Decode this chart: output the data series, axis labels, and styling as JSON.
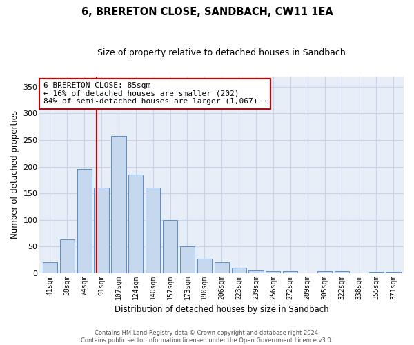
{
  "title": "6, BRERETON CLOSE, SANDBACH, CW11 1EA",
  "subtitle": "Size of property relative to detached houses in Sandbach",
  "xlabel": "Distribution of detached houses by size in Sandbach",
  "ylabel": "Number of detached properties",
  "bar_color": "#c5d8ed",
  "bar_edge_color": "#5b8fc9",
  "categories": [
    "41sqm",
    "58sqm",
    "74sqm",
    "91sqm",
    "107sqm",
    "124sqm",
    "140sqm",
    "157sqm",
    "173sqm",
    "190sqm",
    "206sqm",
    "223sqm",
    "239sqm",
    "256sqm",
    "272sqm",
    "289sqm",
    "305sqm",
    "322sqm",
    "338sqm",
    "355sqm",
    "371sqm"
  ],
  "values": [
    20,
    63,
    195,
    160,
    258,
    185,
    160,
    100,
    50,
    27,
    20,
    10,
    5,
    4,
    4,
    0,
    4,
    4,
    0,
    2,
    2
  ],
  "vline_pos": 2.7,
  "vline_color": "#cc0000",
  "annotation_text": "6 BRERETON CLOSE: 85sqm\n← 16% of detached houses are smaller (202)\n84% of semi-detached houses are larger (1,067) →",
  "annotation_box_color": "#ffffff",
  "annotation_box_edge_color": "#cc0000",
  "ylim": [
    0,
    370
  ],
  "yticks": [
    0,
    50,
    100,
    150,
    200,
    250,
    300,
    350
  ],
  "grid_color": "#c8d4e8",
  "background_color": "#e8eef8",
  "footer1": "Contains HM Land Registry data © Crown copyright and database right 2024.",
  "footer2": "Contains public sector information licensed under the Open Government Licence v3.0."
}
